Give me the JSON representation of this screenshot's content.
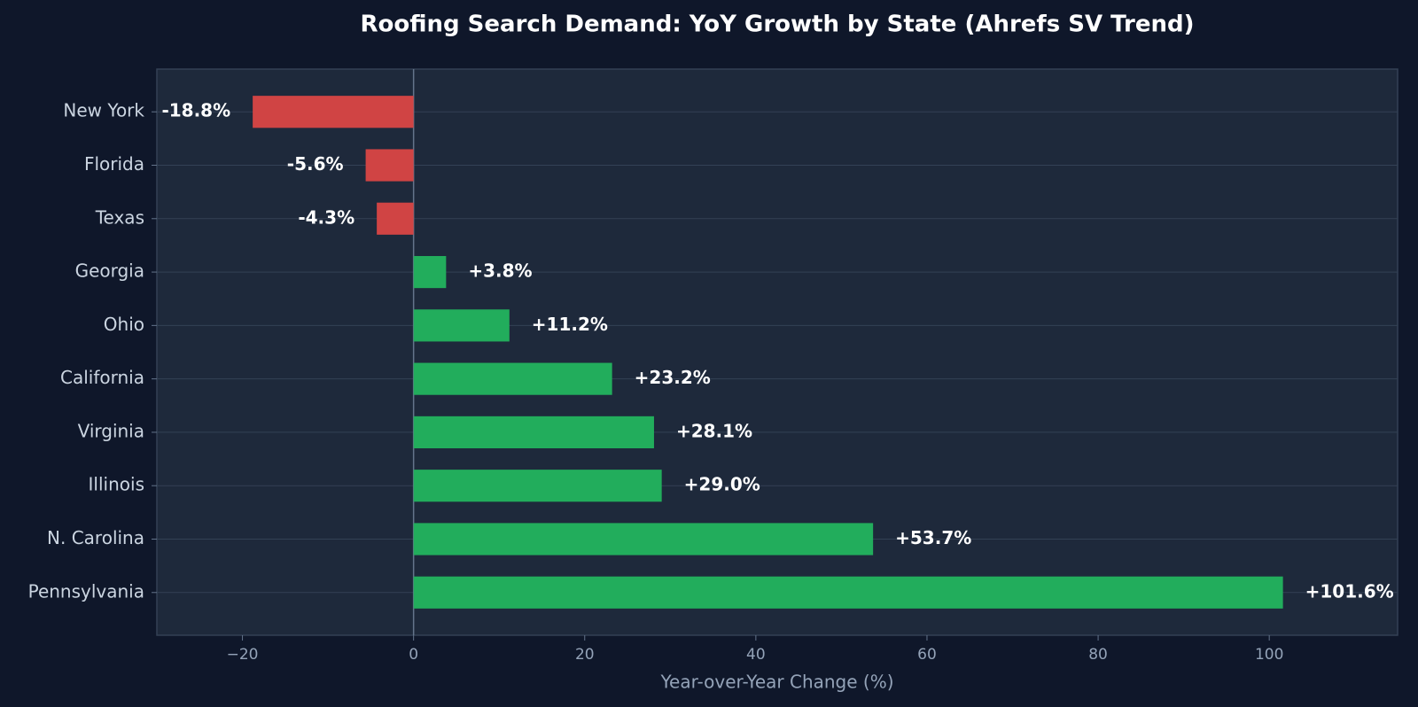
{
  "chart_data": {
    "type": "barh",
    "title": "Roofing Search Demand: YoY Growth by State (Ahrefs SV Trend)",
    "xlabel": "Year-over-Year Change (%)",
    "categories": [
      "New York",
      "Florida",
      "Texas",
      "Georgia",
      "Ohio",
      "California",
      "Virginia",
      "Illinois",
      "N. Carolina",
      "Pennsylvania"
    ],
    "values": [
      -18.8,
      -5.6,
      -4.3,
      3.8,
      11.2,
      23.2,
      28.1,
      29.0,
      53.7,
      101.6
    ],
    "value_labels": [
      "-18.8%",
      "-5.6%",
      "-4.3%",
      "+3.8%",
      "+11.2%",
      "+23.2%",
      "+28.1%",
      "+29.0%",
      "+53.7%",
      "+101.6%"
    ],
    "colors": [
      "#d04444",
      "#d04444",
      "#d04444",
      "#22ad5c",
      "#22ad5c",
      "#22ad5c",
      "#22ad5c",
      "#22ad5c",
      "#22ad5c",
      "#22ad5c"
    ],
    "xlim": [
      -30,
      115
    ],
    "xticks": [
      {
        "value": -20,
        "label": "−20"
      },
      0,
      20,
      40,
      60,
      80,
      100
    ],
    "grid": true
  }
}
